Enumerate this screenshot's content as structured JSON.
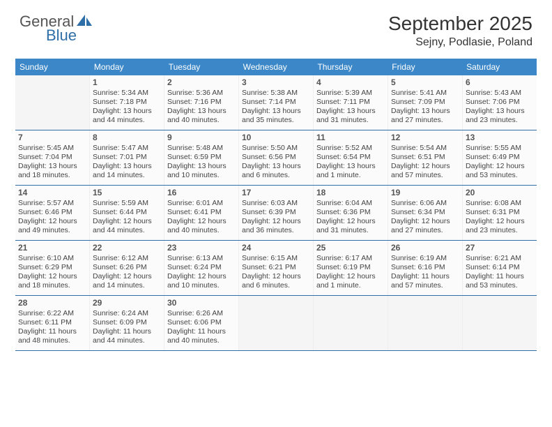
{
  "brand": {
    "text1": "General",
    "text2": "Blue",
    "logo_color": "#2f6fa8"
  },
  "title": "September 2025",
  "location": "Sejny, Podlasie, Poland",
  "colors": {
    "header_bg": "#3b87c8",
    "header_text": "#ffffff",
    "week_divider": "#2f6fa8",
    "cell_bg": "#fbfbfb",
    "empty_bg": "#f5f5f5",
    "text": "#333333"
  },
  "day_names": [
    "Sunday",
    "Monday",
    "Tuesday",
    "Wednesday",
    "Thursday",
    "Friday",
    "Saturday"
  ],
  "labels": {
    "sunrise": "Sunrise:",
    "sunset": "Sunset:",
    "daylight": "Daylight:"
  },
  "weeks": [
    [
      null,
      {
        "n": "1",
        "sr": "5:34 AM",
        "ss": "7:18 PM",
        "dl": "13 hours and 44 minutes."
      },
      {
        "n": "2",
        "sr": "5:36 AM",
        "ss": "7:16 PM",
        "dl": "13 hours and 40 minutes."
      },
      {
        "n": "3",
        "sr": "5:38 AM",
        "ss": "7:14 PM",
        "dl": "13 hours and 35 minutes."
      },
      {
        "n": "4",
        "sr": "5:39 AM",
        "ss": "7:11 PM",
        "dl": "13 hours and 31 minutes."
      },
      {
        "n": "5",
        "sr": "5:41 AM",
        "ss": "7:09 PM",
        "dl": "13 hours and 27 minutes."
      },
      {
        "n": "6",
        "sr": "5:43 AM",
        "ss": "7:06 PM",
        "dl": "13 hours and 23 minutes."
      }
    ],
    [
      {
        "n": "7",
        "sr": "5:45 AM",
        "ss": "7:04 PM",
        "dl": "13 hours and 18 minutes."
      },
      {
        "n": "8",
        "sr": "5:47 AM",
        "ss": "7:01 PM",
        "dl": "13 hours and 14 minutes."
      },
      {
        "n": "9",
        "sr": "5:48 AM",
        "ss": "6:59 PM",
        "dl": "13 hours and 10 minutes."
      },
      {
        "n": "10",
        "sr": "5:50 AM",
        "ss": "6:56 PM",
        "dl": "13 hours and 6 minutes."
      },
      {
        "n": "11",
        "sr": "5:52 AM",
        "ss": "6:54 PM",
        "dl": "13 hours and 1 minute."
      },
      {
        "n": "12",
        "sr": "5:54 AM",
        "ss": "6:51 PM",
        "dl": "12 hours and 57 minutes."
      },
      {
        "n": "13",
        "sr": "5:55 AM",
        "ss": "6:49 PM",
        "dl": "12 hours and 53 minutes."
      }
    ],
    [
      {
        "n": "14",
        "sr": "5:57 AM",
        "ss": "6:46 PM",
        "dl": "12 hours and 49 minutes."
      },
      {
        "n": "15",
        "sr": "5:59 AM",
        "ss": "6:44 PM",
        "dl": "12 hours and 44 minutes."
      },
      {
        "n": "16",
        "sr": "6:01 AM",
        "ss": "6:41 PM",
        "dl": "12 hours and 40 minutes."
      },
      {
        "n": "17",
        "sr": "6:03 AM",
        "ss": "6:39 PM",
        "dl": "12 hours and 36 minutes."
      },
      {
        "n": "18",
        "sr": "6:04 AM",
        "ss": "6:36 PM",
        "dl": "12 hours and 31 minutes."
      },
      {
        "n": "19",
        "sr": "6:06 AM",
        "ss": "6:34 PM",
        "dl": "12 hours and 27 minutes."
      },
      {
        "n": "20",
        "sr": "6:08 AM",
        "ss": "6:31 PM",
        "dl": "12 hours and 23 minutes."
      }
    ],
    [
      {
        "n": "21",
        "sr": "6:10 AM",
        "ss": "6:29 PM",
        "dl": "12 hours and 18 minutes."
      },
      {
        "n": "22",
        "sr": "6:12 AM",
        "ss": "6:26 PM",
        "dl": "12 hours and 14 minutes."
      },
      {
        "n": "23",
        "sr": "6:13 AM",
        "ss": "6:24 PM",
        "dl": "12 hours and 10 minutes."
      },
      {
        "n": "24",
        "sr": "6:15 AM",
        "ss": "6:21 PM",
        "dl": "12 hours and 6 minutes."
      },
      {
        "n": "25",
        "sr": "6:17 AM",
        "ss": "6:19 PM",
        "dl": "12 hours and 1 minute."
      },
      {
        "n": "26",
        "sr": "6:19 AM",
        "ss": "6:16 PM",
        "dl": "11 hours and 57 minutes."
      },
      {
        "n": "27",
        "sr": "6:21 AM",
        "ss": "6:14 PM",
        "dl": "11 hours and 53 minutes."
      }
    ],
    [
      {
        "n": "28",
        "sr": "6:22 AM",
        "ss": "6:11 PM",
        "dl": "11 hours and 48 minutes."
      },
      {
        "n": "29",
        "sr": "6:24 AM",
        "ss": "6:09 PM",
        "dl": "11 hours and 44 minutes."
      },
      {
        "n": "30",
        "sr": "6:26 AM",
        "ss": "6:06 PM",
        "dl": "11 hours and 40 minutes."
      },
      null,
      null,
      null,
      null
    ]
  ]
}
